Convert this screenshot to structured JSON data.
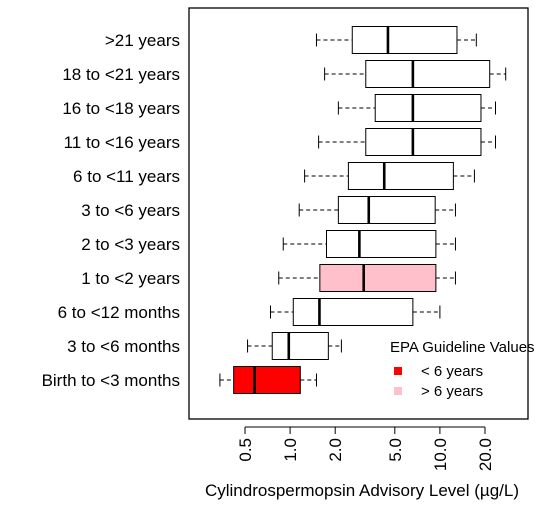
{
  "chart_data": {
    "type": "boxplot",
    "orientation": "horizontal",
    "xlabel": "Cylindrospermopsin Advisory Level (µg/L)",
    "ylabel": "",
    "title": "",
    "x_scale": "log",
    "xlim": [
      0.3,
      33
    ],
    "x_ticks": [
      0.5,
      1.0,
      2.0,
      5.0,
      10.0,
      20.0
    ],
    "x_tick_labels": [
      "0.5",
      "1.0",
      "2.0",
      "5.0",
      "10.0",
      "20.0"
    ],
    "grid": false,
    "groups": [
      {
        "label": ">21 years",
        "whisker_low": 1.5,
        "q1": 2.6,
        "median": 4.5,
        "q3": 13.0,
        "whisker_high": 17.5,
        "highlight": "none"
      },
      {
        "label": "18 to <21 years",
        "whisker_low": 1.7,
        "q1": 3.2,
        "median": 6.6,
        "q3": 21.5,
        "whisker_high": 27.5,
        "highlight": "none"
      },
      {
        "label": "16 to <18 years",
        "whisker_low": 2.1,
        "q1": 3.7,
        "median": 6.6,
        "q3": 18.8,
        "whisker_high": 23.5,
        "highlight": "none"
      },
      {
        "label": "11 to <16 years",
        "whisker_low": 1.55,
        "q1": 3.2,
        "median": 6.6,
        "q3": 18.8,
        "whisker_high": 23.5,
        "highlight": "none"
      },
      {
        "label": "6 to <11 years",
        "whisker_low": 1.25,
        "q1": 2.45,
        "median": 4.25,
        "q3": 12.3,
        "whisker_high": 17.0,
        "highlight": "none"
      },
      {
        "label": "3 to <6 years",
        "whisker_low": 1.15,
        "q1": 2.1,
        "median": 3.35,
        "q3": 9.3,
        "whisker_high": 12.7,
        "highlight": "none"
      },
      {
        "label": "2 to <3 years",
        "whisker_low": 0.9,
        "q1": 1.75,
        "median": 2.9,
        "q3": 9.4,
        "whisker_high": 12.7,
        "highlight": "none"
      },
      {
        "label": "1 to <2 years",
        "whisker_low": 0.84,
        "q1": 1.58,
        "median": 3.1,
        "q3": 9.4,
        "whisker_high": 12.7,
        "highlight": "> 6 years"
      },
      {
        "label": "6 to <12 months",
        "whisker_low": 0.74,
        "q1": 1.05,
        "median": 1.57,
        "q3": 6.6,
        "whisker_high": 10.0,
        "highlight": "none"
      },
      {
        "label": "3 to <6 months",
        "whisker_low": 0.52,
        "q1": 0.76,
        "median": 0.98,
        "q3": 1.8,
        "whisker_high": 2.2,
        "highlight": "none"
      },
      {
        "label": "Birth to <3 months",
        "whisker_low": 0.34,
        "q1": 0.42,
        "median": 0.58,
        "q3": 1.17,
        "whisker_high": 1.5,
        "highlight": "< 6 years"
      }
    ],
    "legend": {
      "title": "EPA Guideline Values",
      "position": "bottom-right",
      "entries": [
        {
          "label": "< 6 years",
          "color": "#ff0000"
        },
        {
          "label": "> 6 years",
          "color": "#ffc0cb"
        }
      ]
    },
    "colors": {
      "default_box": "#ffffff",
      "line": "#000000"
    }
  }
}
